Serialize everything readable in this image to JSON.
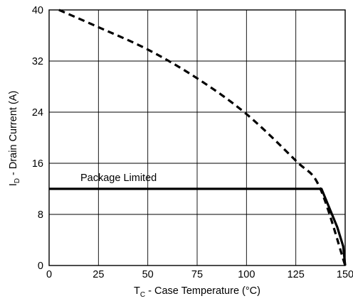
{
  "chart_data": {
    "type": "line",
    "xlabel_main": "T",
    "xlabel_sub": "C",
    "xlabel_rest": " - Case Temperature (°C)",
    "ylabel_main": "I",
    "ylabel_sub": "D",
    "ylabel_rest": " - Drain Current (A)",
    "xlim": [
      0,
      150
    ],
    "ylim": [
      0,
      40
    ],
    "xticks": [
      0,
      25,
      50,
      75,
      100,
      125,
      150
    ],
    "yticks": [
      0,
      8,
      16,
      24,
      32,
      40
    ],
    "grid": true,
    "annotation": "Package Limited",
    "series": [
      {
        "style": "dashed",
        "x": [
          5,
          25,
          50,
          75,
          100,
          125,
          137,
          150
        ],
        "y": [
          40,
          37.3,
          33.8,
          29.3,
          23.7,
          16.4,
          12.3,
          0
        ]
      },
      {
        "style": "solid",
        "x": [
          0,
          138,
          142,
          146,
          149,
          150
        ],
        "y": [
          12,
          12,
          9,
          6,
          3,
          0
        ]
      }
    ],
    "colors": {
      "line": "#000000",
      "grid": "#000000",
      "background": "#ffffff"
    }
  }
}
